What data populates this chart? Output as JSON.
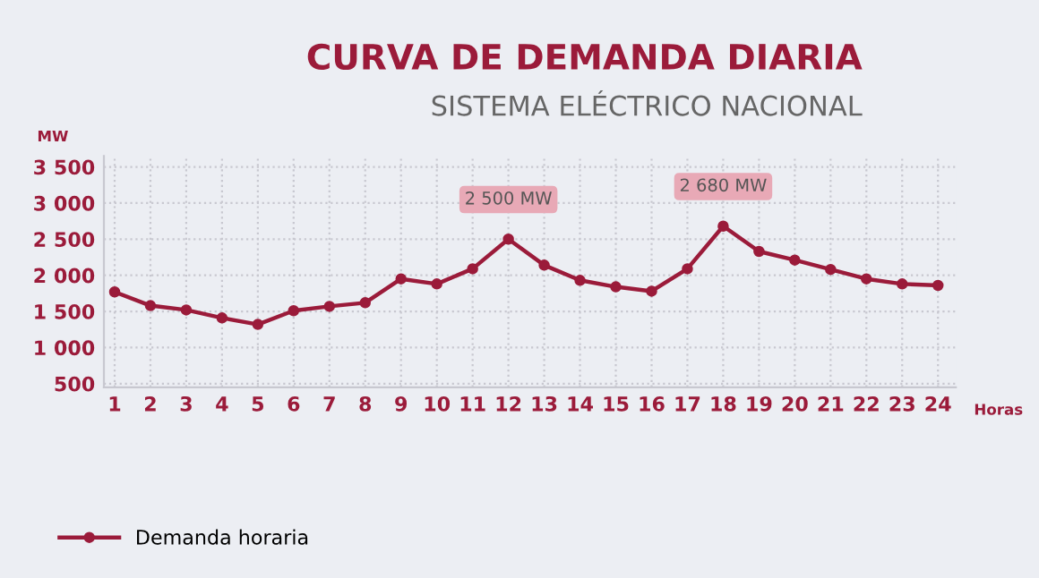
{
  "chart_data": {
    "type": "line",
    "title": "CURVA DE DEMANDA DIARIA",
    "subtitle": "SISTEMA ELÉCTRICO NACIONAL",
    "xlabel": "Horas",
    "ylabel": "MW",
    "x": [
      1,
      2,
      3,
      4,
      5,
      6,
      7,
      8,
      9,
      10,
      11,
      12,
      13,
      14,
      15,
      16,
      17,
      18,
      19,
      20,
      21,
      22,
      23,
      24
    ],
    "series": [
      {
        "name": "Demanda horaria",
        "color": "#9b1b3a",
        "values": [
          1770,
          1580,
          1520,
          1410,
          1320,
          1510,
          1570,
          1620,
          1950,
          1880,
          2090,
          2500,
          2140,
          1930,
          1840,
          1780,
          2090,
          2680,
          2330,
          2210,
          2080,
          1950,
          1880,
          1860
        ]
      }
    ],
    "xlim": [
      0.7,
      24.5
    ],
    "xticks": [
      1,
      2,
      3,
      4,
      5,
      6,
      7,
      8,
      9,
      10,
      11,
      12,
      13,
      14,
      15,
      16,
      17,
      18,
      19,
      20,
      21,
      22,
      23,
      24
    ],
    "ylim": [
      450,
      3650
    ],
    "yticks": [
      {
        "value": 500,
        "label": "500"
      },
      {
        "value": 1000,
        "label": "1 000"
      },
      {
        "value": 1500,
        "label": "1 500"
      },
      {
        "value": 2000,
        "label": "2 000"
      },
      {
        "value": 2500,
        "label": "2 500"
      },
      {
        "value": 3000,
        "label": "3 000"
      },
      {
        "value": 3500,
        "label": "3 500"
      }
    ],
    "annotations": [
      {
        "text": "2 500 MW",
        "x": 12,
        "y": 2500
      },
      {
        "text": "2 680 MW",
        "x": 18,
        "y": 2680
      }
    ],
    "grid": true,
    "legend": "bottom left",
    "marker": "circle",
    "line_style": "solid"
  }
}
